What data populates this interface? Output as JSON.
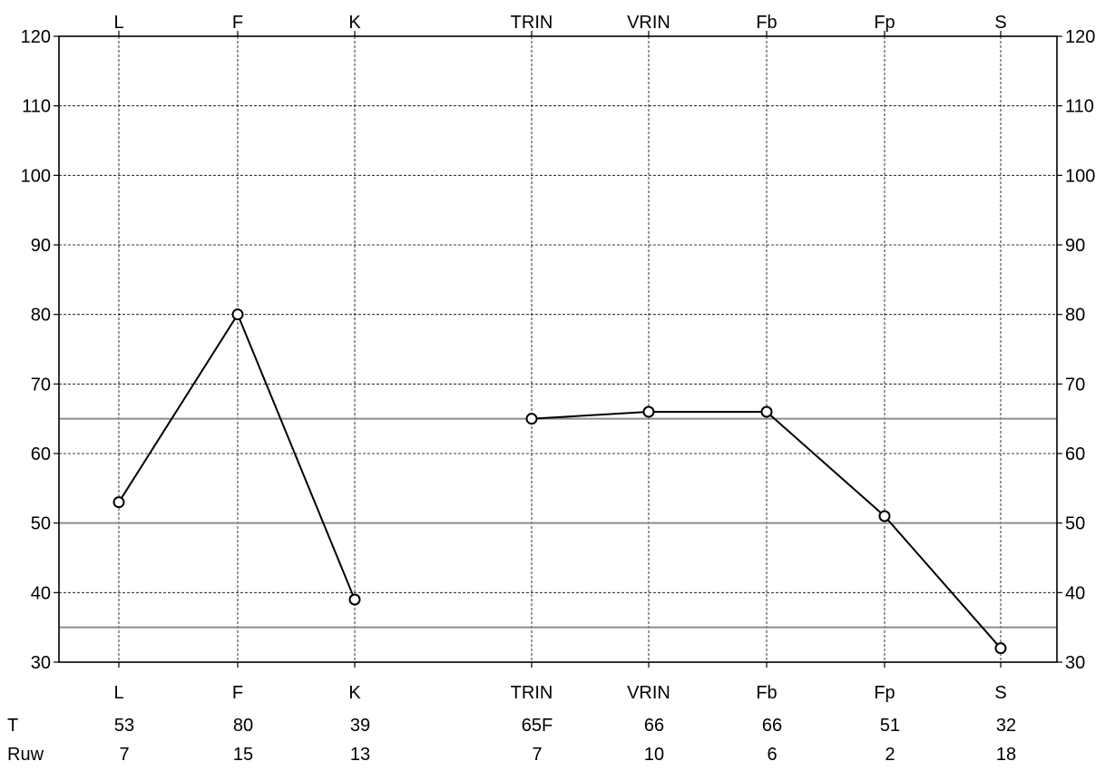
{
  "chart_data": {
    "type": "line",
    "categories": [
      "L",
      "F",
      "K",
      "TRIN",
      "VRIN",
      "Fb",
      "Fp",
      "S"
    ],
    "series": [
      {
        "values": [
          53,
          80,
          39,
          null,
          null,
          null,
          null,
          null
        ]
      },
      {
        "values": [
          null,
          null,
          null,
          65,
          66,
          66,
          51,
          32
        ]
      }
    ],
    "ylim": [
      30,
      120
    ],
    "yticks": [
      30,
      40,
      50,
      60,
      70,
      80,
      90,
      100,
      110,
      120
    ],
    "reference_lines": [
      35,
      50,
      65
    ],
    "grid": true,
    "legend": "none",
    "table": {
      "rows": [
        {
          "label": "T",
          "values": [
            "53",
            "80",
            "39",
            "65F",
            "66",
            "66",
            "51",
            "32"
          ]
        },
        {
          "label": "Ruw",
          "values": [
            "7",
            "15",
            "13",
            "7",
            "10",
            "6",
            "2",
            "18"
          ]
        }
      ]
    },
    "colors": {
      "line": "#000000",
      "reference": "#8c8c8c",
      "grid": "#000000"
    }
  }
}
